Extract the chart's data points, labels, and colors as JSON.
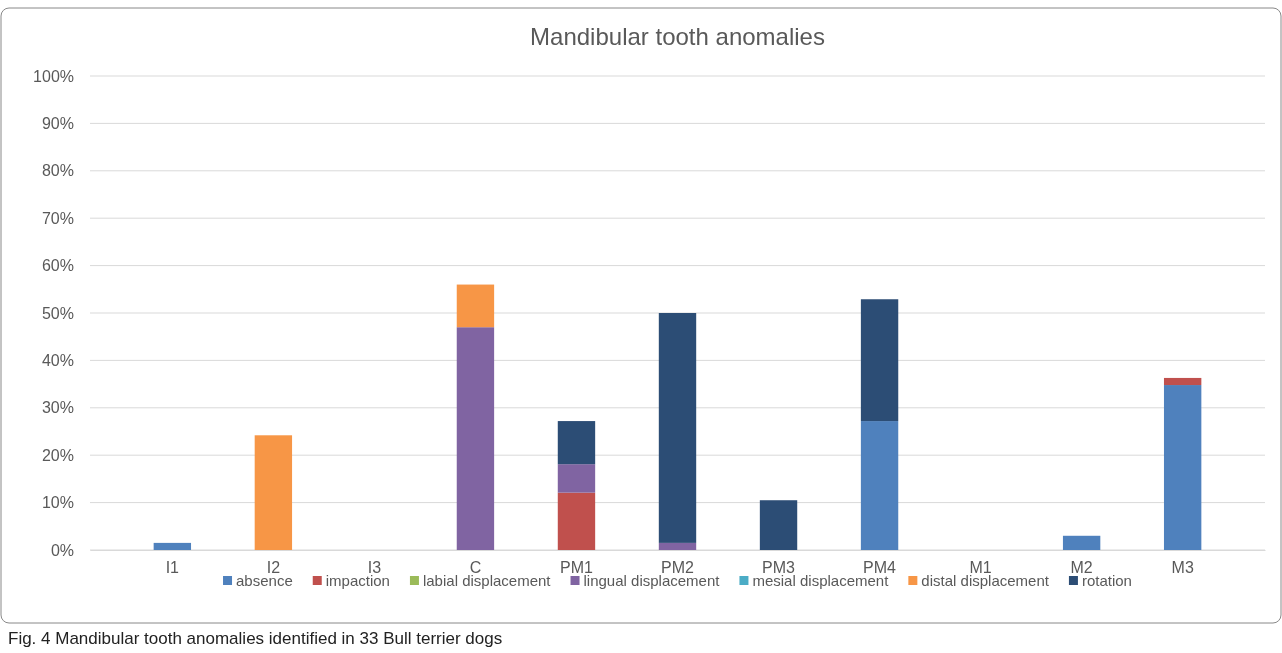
{
  "chart_data": {
    "type": "bar",
    "title": "Mandibular tooth anomalies",
    "stacked": true,
    "categories": [
      "I1",
      "I2",
      "I3",
      "C",
      "PM1",
      "PM2",
      "PM3",
      "PM4",
      "M1",
      "M2",
      "M3"
    ],
    "series": [
      {
        "name": "absence",
        "color": "#4f81bd",
        "values": [
          1.5,
          0,
          0,
          0,
          0,
          0,
          0,
          27.2,
          0,
          3.0,
          34.8
        ]
      },
      {
        "name": "impaction",
        "color": "#c0504d",
        "values": [
          0,
          0,
          0,
          0,
          12.1,
          0,
          0,
          0,
          0,
          0,
          1.5
        ]
      },
      {
        "name": "labial displacement",
        "color": "#9bbb59",
        "values": [
          0,
          0,
          0,
          0,
          0,
          0,
          0,
          0,
          0,
          0,
          0
        ]
      },
      {
        "name": "lingual displacement",
        "color": "#8064a2",
        "values": [
          0,
          0,
          0,
          47,
          6.0,
          1.5,
          0,
          0,
          0,
          0,
          0
        ]
      },
      {
        "name": "mesial displacement",
        "color": "#4bacc6",
        "values": [
          0,
          0,
          0,
          0,
          0,
          0,
          0,
          0,
          0,
          0,
          0
        ]
      },
      {
        "name": "distal displacement",
        "color": "#f79646",
        "values": [
          0,
          24.2,
          0,
          9,
          0,
          0,
          0,
          0,
          0,
          0,
          0
        ]
      },
      {
        "name": "rotation",
        "color": "#2c4d75",
        "values": [
          0,
          0,
          0,
          0,
          9.1,
          48.5,
          10.5,
          25.7,
          0,
          0,
          0
        ]
      }
    ],
    "ylim": [
      0,
      100
    ],
    "yticks": [
      {
        "value": 0,
        "label": "0%"
      },
      {
        "value": 10,
        "label": "10%"
      },
      {
        "value": 20,
        "label": "20%"
      },
      {
        "value": 30,
        "label": "30%"
      },
      {
        "value": 40,
        "label": "40%"
      },
      {
        "value": 50,
        "label": "50%"
      },
      {
        "value": 60,
        "label": "60%"
      },
      {
        "value": 70,
        "label": "70%"
      },
      {
        "value": 80,
        "label": "80%"
      },
      {
        "value": 90,
        "label": "90%"
      },
      {
        "value": 100,
        "label": "100%"
      }
    ],
    "grid": "y",
    "legend": "bottom",
    "annotations": [
      "Fig. 4  Mandibular tooth anomalies identified in 33 Bull terrier dogs"
    ]
  }
}
